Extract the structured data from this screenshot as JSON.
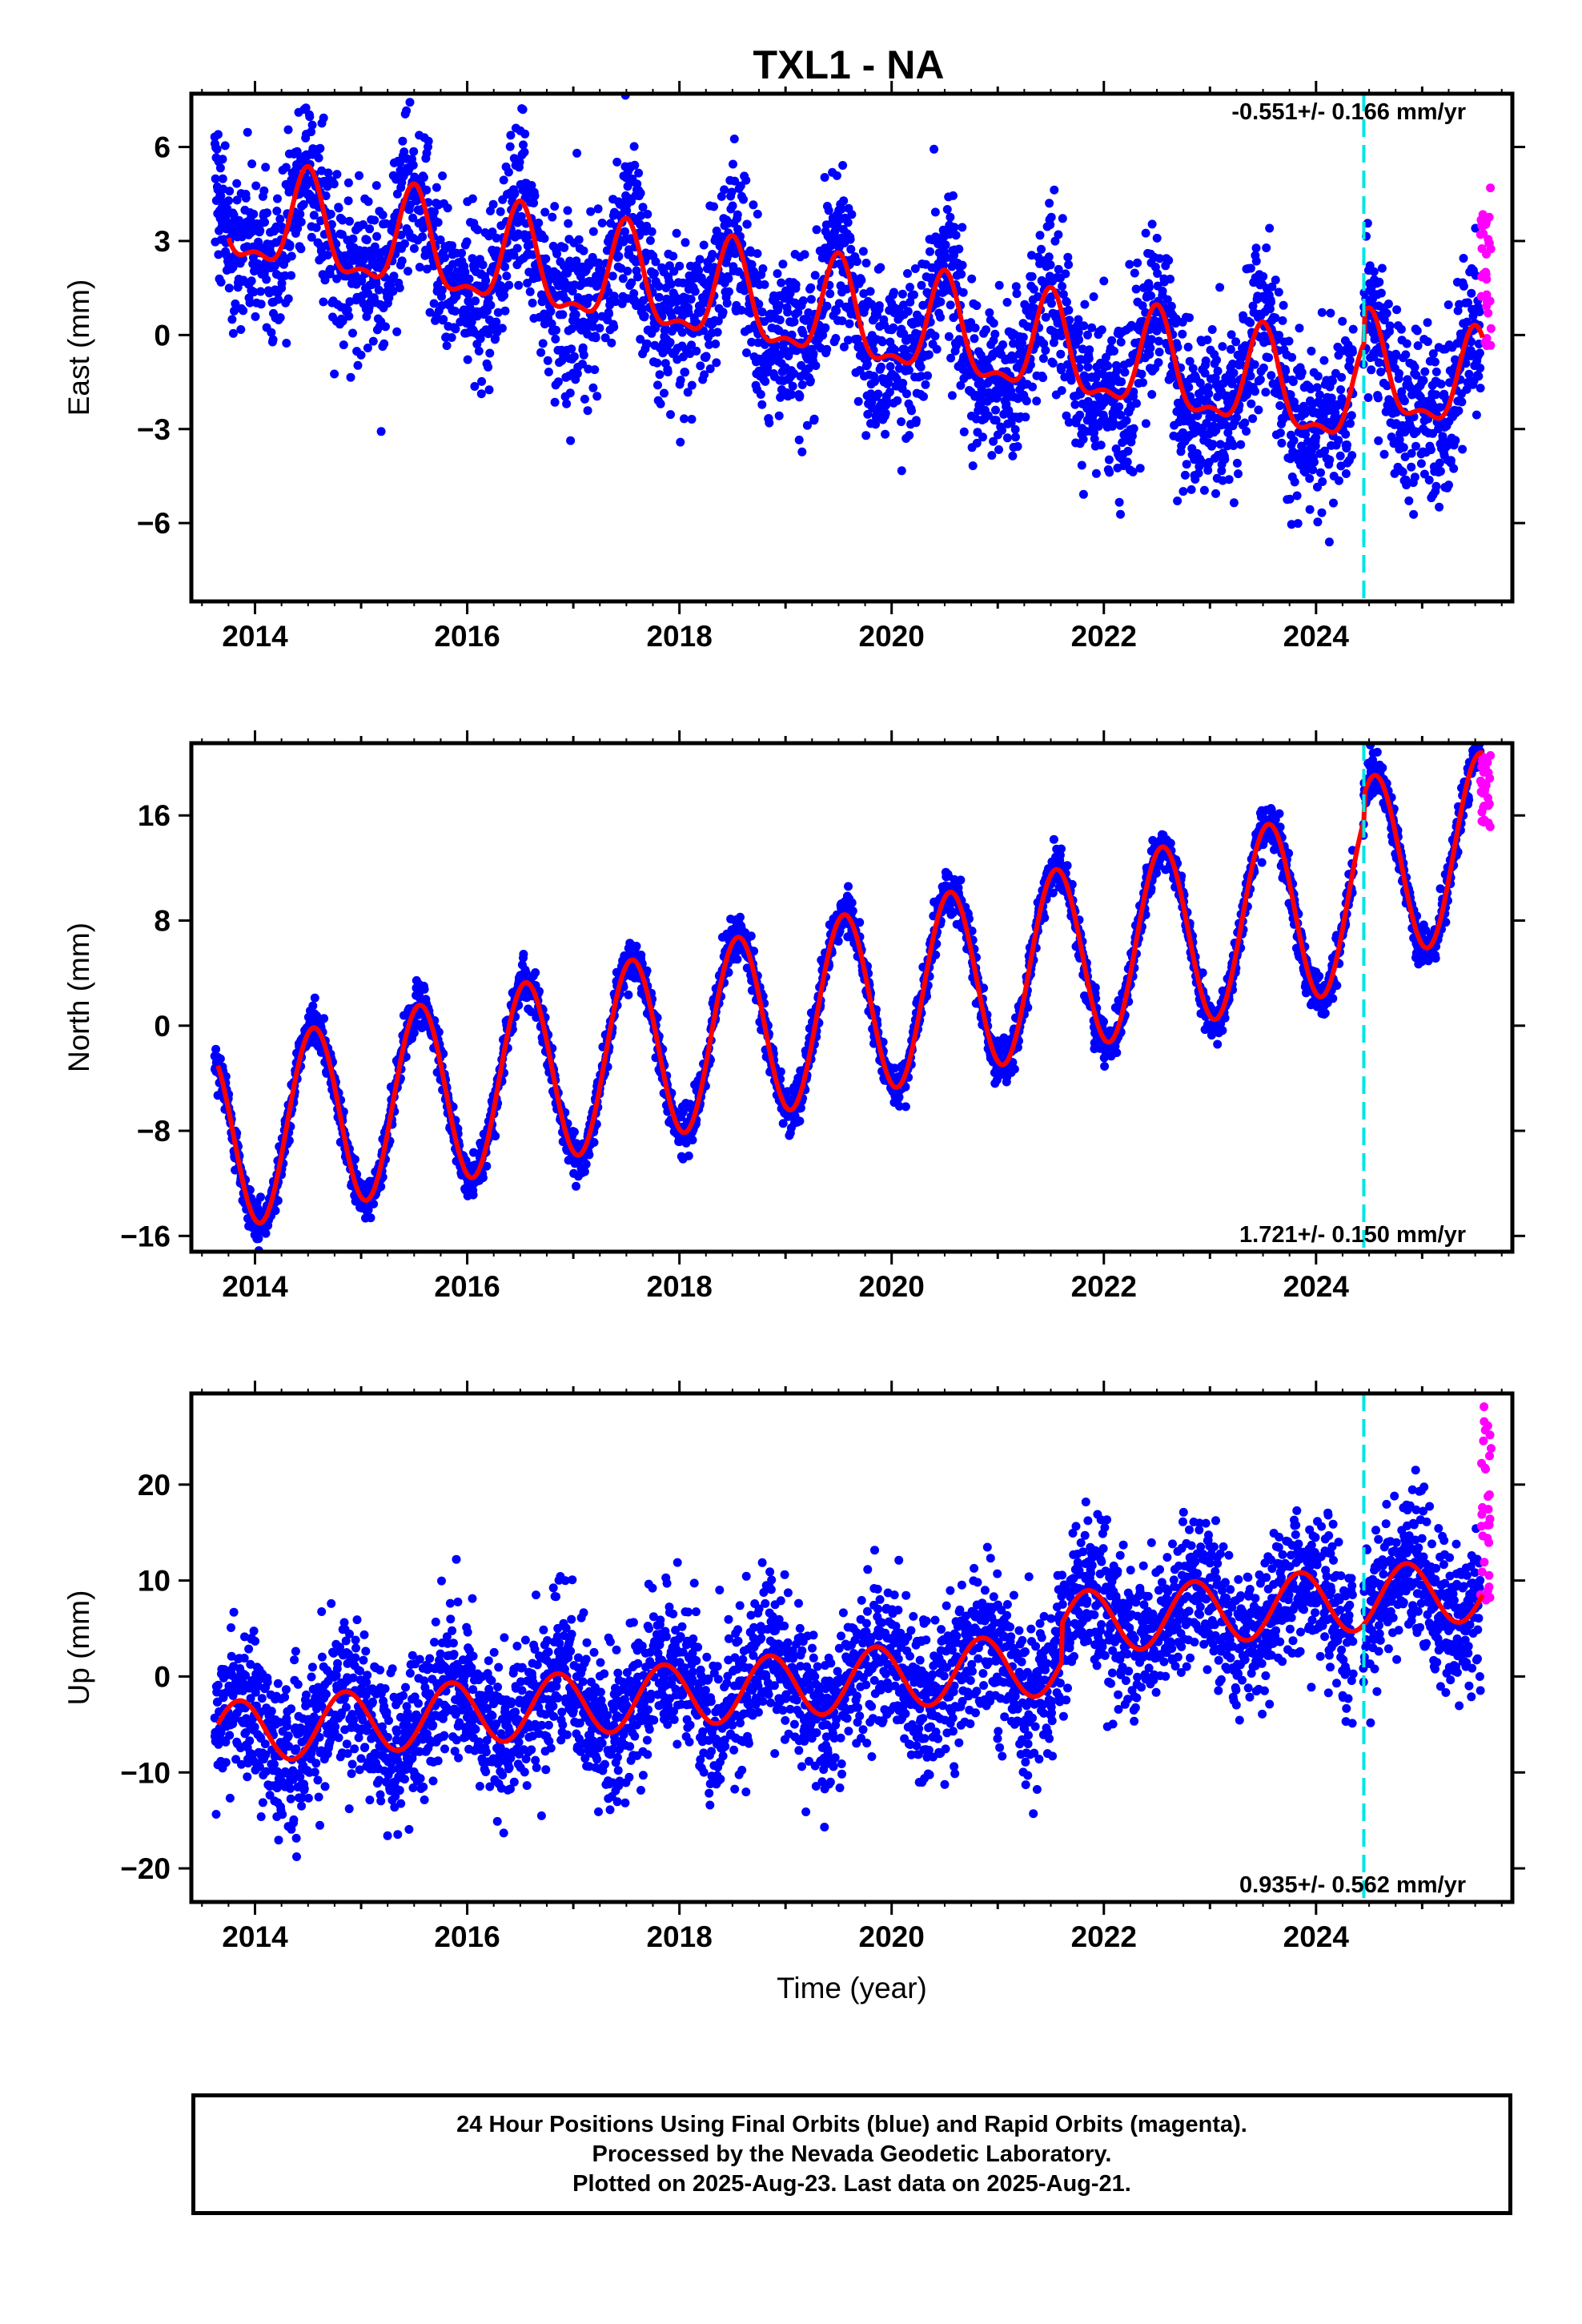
{
  "title": "TXL1 - NA",
  "colors": {
    "final_orbits": "#0000ff",
    "rapid_orbits": "#ff00ff",
    "model_fit": "#ff0000",
    "equipment_change": "#00e5e5"
  },
  "caption": {
    "line1": "24 Hour Positions Using Final Orbits (blue) and Rapid Orbits (magenta).",
    "line2": "Processed by the Nevada Geodetic Laboratory.",
    "line3": "Plotted on 2025-Aug-23. Last data on 2025-Aug-21."
  },
  "chart_data": [
    {
      "type": "scatter",
      "ylabel": "East (mm)",
      "xlabel": "",
      "rate_label": "-0.551+/- 0.166 mm/yr",
      "xlim": [
        2013.4,
        2025.85
      ],
      "ylim": [
        -8.5,
        7.7
      ],
      "x_ticks": [
        "2014",
        "2016",
        "2018",
        "2020",
        "2022",
        "2024"
      ],
      "y_ticks": [
        "-6",
        "-3",
        "0",
        "3",
        "6"
      ],
      "y_tick_values": [
        -6,
        -3,
        0,
        3,
        6
      ],
      "trend": {
        "value_at_2019": 0.8,
        "rate": -0.551
      },
      "seasonal": {
        "annual_amp": 1.5,
        "annual_peak": 0.5,
        "semiannual_amp": 0.6
      },
      "noise_sd": 1.3,
      "jumps": [
        {
          "t": 2024.45,
          "dy": 1.0
        }
      ],
      "equipment_change": 2024.45,
      "model_fit_start": 2013.75,
      "rapid": {
        "x_from": 2025.55,
        "x_to": 2025.65,
        "y_from": -0.5,
        "y_to": 4.9
      }
    },
    {
      "type": "scatter",
      "ylabel": "North (mm)",
      "xlabel": "",
      "rate_label": "1.721+/- 0.150 mm/yr",
      "xlim": [
        2013.4,
        2025.85
      ],
      "ylim": [
        -17.2,
        21.5
      ],
      "x_ticks": [
        "2014",
        "2016",
        "2018",
        "2020",
        "2022",
        "2024"
      ],
      "y_ticks": [
        "-16",
        "-8",
        "0",
        "8",
        "16"
      ],
      "y_tick_values": [
        -16,
        -8,
        0,
        8,
        16
      ],
      "trend": {
        "value_at_2019": 0.5,
        "rate": 1.721
      },
      "seasonal": {
        "annual_amp": 7.0,
        "annual_peak": 0.55,
        "semiannual_amp": 0.0
      },
      "noise_sd": 0.8,
      "jumps": [
        {
          "t": 2024.45,
          "dy": 2.0
        }
      ],
      "equipment_change": 2024.45,
      "model_fit_start": 2013.65,
      "rapid": {
        "x_from": 2025.55,
        "x_to": 2025.65,
        "y_from": 15.0,
        "y_to": 21.0
      }
    },
    {
      "type": "scatter",
      "ylabel": "Up (mm)",
      "xlabel": "Time (year)",
      "rate_label": "0.935+/- 0.562 mm/yr",
      "xlim": [
        2013.4,
        2025.85
      ],
      "ylim": [
        -23.5,
        29.5
      ],
      "x_ticks": [
        "2014",
        "2016",
        "2018",
        "2020",
        "2022",
        "2024"
      ],
      "y_ticks": [
        "-20",
        "-10",
        "0",
        "10",
        "20"
      ],
      "y_tick_values": [
        -20,
        -10,
        0,
        10,
        20
      ],
      "trend": {
        "value_at_2019": -1.0,
        "rate": 0.935
      },
      "seasonal": {
        "annual_amp": 3.3,
        "annual_peak": 0.85,
        "semiannual_amp": 0.0
      },
      "noise_sd": 4.0,
      "jumps": [
        {
          "t": 2021.6,
          "dy": 4.0
        }
      ],
      "equipment_change": 2024.45,
      "model_fit_start": 2013.65,
      "rapid": {
        "x_from": 2025.55,
        "x_to": 2025.65,
        "y_from": 5.0,
        "y_to": 28.5
      }
    }
  ]
}
